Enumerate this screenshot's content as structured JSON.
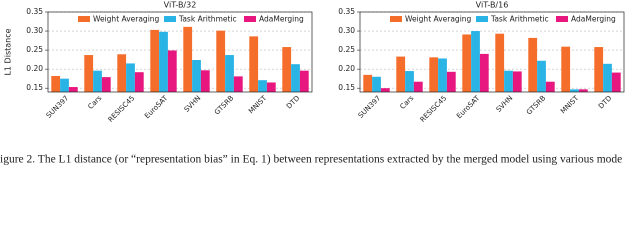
{
  "chart_data": [
    {
      "type": "bar",
      "title": "ViT-B/32",
      "ylabel": "L1 Distance",
      "categories": [
        "SUN397",
        "Cars",
        "RESISC45",
        "EuroSAT",
        "SVHN",
        "GTSRB",
        "MNIST",
        "DTD"
      ],
      "series": [
        {
          "name": "Weight Averaging",
          "color": "#f46d2a",
          "values": [
            0.182,
            0.237,
            0.239,
            0.303,
            0.311,
            0.301,
            0.286,
            0.258
          ]
        },
        {
          "name": "Task Arithmetic",
          "color": "#2ab4e6",
          "values": [
            0.175,
            0.196,
            0.215,
            0.298,
            0.224,
            0.237,
            0.171,
            0.213
          ]
        },
        {
          "name": "AdaMerging",
          "color": "#e8177f",
          "values": [
            0.153,
            0.179,
            0.192,
            0.249,
            0.197,
            0.181,
            0.165,
            0.196
          ]
        }
      ],
      "ylim": [
        0.14,
        0.35
      ],
      "yticks": [
        0.15,
        {
          "value": 0.2,
          "label": "0.20"
        },
        0.25,
        {
          "value": 0.3,
          "label": "0.30"
        },
        0.35
      ],
      "grid": true,
      "legend": "top"
    },
    {
      "type": "bar",
      "title": "ViT-B/16",
      "categories": [
        "SUN397",
        "Cars",
        "RESISC45",
        "EuroSAT",
        "SVHN",
        "GTSRB",
        "MNIST",
        "DTD"
      ],
      "series": [
        {
          "name": "Weight Averaging",
          "color": "#f46d2a",
          "values": [
            0.185,
            0.233,
            0.231,
            0.291,
            0.293,
            0.282,
            0.259,
            0.258
          ]
        },
        {
          "name": "Task Arithmetic",
          "color": "#2ab4e6",
          "values": [
            0.18,
            0.195,
            0.228,
            0.3,
            0.196,
            0.222,
            0.147,
            0.214
          ]
        },
        {
          "name": "AdaMerging",
          "color": "#e8177f",
          "values": [
            0.15,
            0.167,
            0.193,
            0.24,
            0.194,
            0.167,
            0.147,
            0.191
          ]
        }
      ],
      "ylim": [
        0.14,
        0.35
      ],
      "yticks": [
        0.15,
        {
          "value": 0.2,
          "label": "0.20"
        },
        0.25,
        {
          "value": 0.3,
          "label": "0.30"
        },
        0.35
      ],
      "grid": true,
      "legend": "top"
    }
  ],
  "caption": "igure 2. The L1 distance (or “representation bias” in Eq. 1) between representations extracted by the merged model using various mode"
}
